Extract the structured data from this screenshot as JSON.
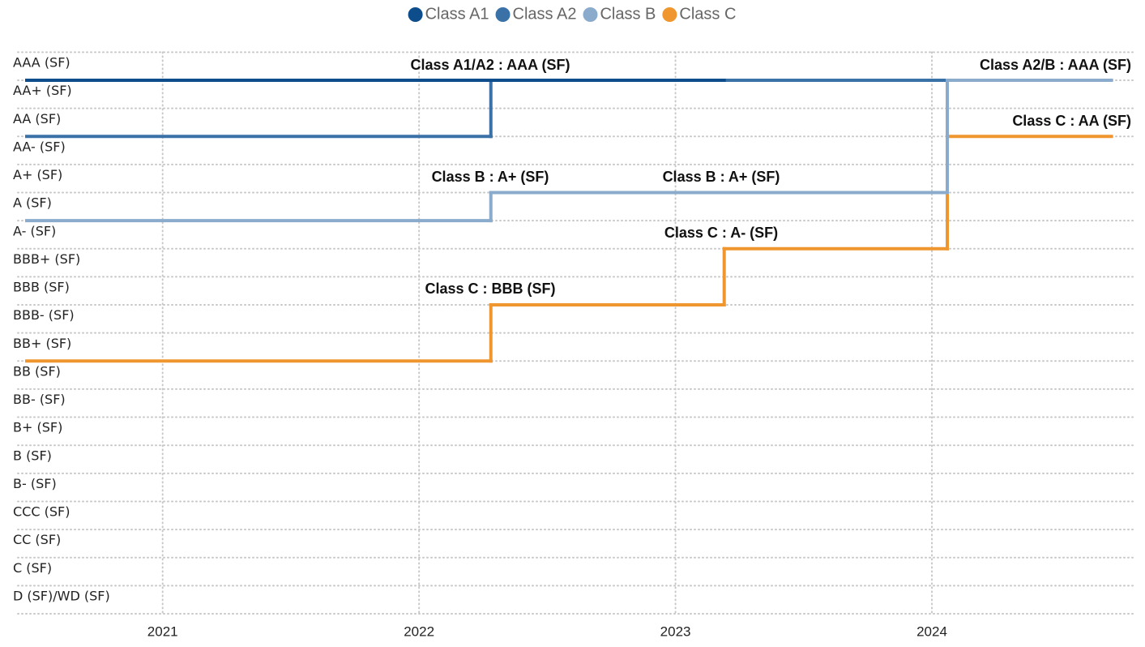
{
  "chart_data": {
    "type": "step",
    "y_categories": [
      "AAA (SF)",
      "AA+ (SF)",
      "AA (SF)",
      "AA- (SF)",
      "A+ (SF)",
      "A (SF)",
      "A- (SF)",
      "BBB+ (SF)",
      "BBB (SF)",
      "BBB- (SF)",
      "BB+ (SF)",
      "BB (SF)",
      "BB- (SF)",
      "B+ (SF)",
      "B (SF)",
      "B- (SF)",
      "CCC (SF)",
      "CC (SF)",
      "C (SF)",
      "D (SF)/WD (SF)"
    ],
    "xlim": [
      2020.41,
      2024.79
    ],
    "xticks": [
      2021,
      2022,
      2023,
      2024
    ],
    "grid": true,
    "legend": "top",
    "series": [
      {
        "name": "Class A1",
        "color": "#0e4d8c",
        "x": [
          2020.47,
          2023.19
        ],
        "values": [
          "AAA (SF)",
          "AAA (SF)"
        ]
      },
      {
        "name": "Class A2",
        "color": "#3a72a8",
        "x": [
          2020.47,
          2022.28,
          2024.7
        ],
        "values": [
          "AA (SF)",
          "AAA (SF)",
          "AAA (SF)"
        ]
      },
      {
        "name": "Class B",
        "color": "#8aabcc",
        "x": [
          2020.47,
          2022.28,
          2024.06,
          2024.7
        ],
        "values": [
          "A (SF)",
          "A+ (SF)",
          "AAA (SF)",
          "AAA (SF)"
        ]
      },
      {
        "name": "Class C",
        "color": "#f0962e",
        "x": [
          2020.47,
          2022.28,
          2023.19,
          2024.06,
          2024.7
        ],
        "values": [
          "BB+ (SF)",
          "BBB (SF)",
          "A- (SF)",
          "AA (SF)",
          "AA (SF)"
        ]
      }
    ],
    "annotations": [
      "Class A1/A2 : AAA (SF)",
      "Class A2/B : AAA (SF)",
      "Class C : AA (SF)",
      "Class B : A+ (SF)",
      "Class B : A+ (SF)",
      "Class C : A- (SF)",
      "Class C : BBB (SF)"
    ]
  }
}
